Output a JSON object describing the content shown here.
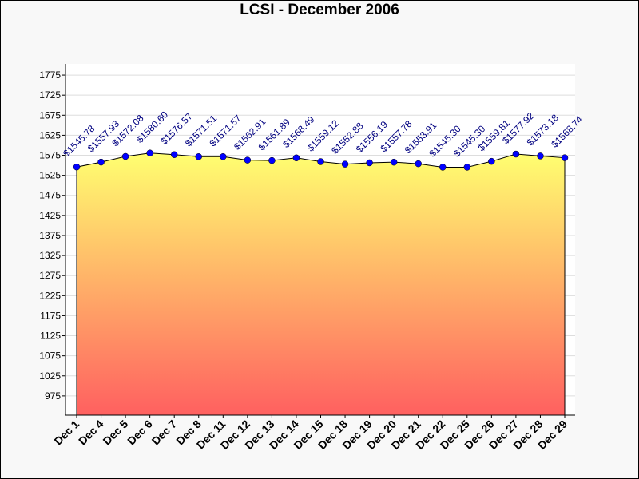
{
  "chart_data": {
    "type": "area",
    "title": "LCSI - December 2006",
    "xlabel": "",
    "ylabel": "",
    "categories": [
      "Dec 1",
      "Dec 4",
      "Dec 5",
      "Dec 6",
      "Dec 7",
      "Dec 8",
      "Dec 11",
      "Dec 12",
      "Dec 13",
      "Dec 14",
      "Dec 15",
      "Dec 18",
      "Dec 19",
      "Dec 20",
      "Dec 21",
      "Dec 22",
      "Dec 25",
      "Dec 26",
      "Dec 27",
      "Dec 28",
      "Dec 29"
    ],
    "values": [
      1545.78,
      1557.93,
      1572.08,
      1580.6,
      1576.57,
      1571.51,
      1571.57,
      1562.91,
      1561.89,
      1568.49,
      1559.12,
      1552.88,
      1556.19,
      1557.78,
      1553.91,
      1545.3,
      1545.3,
      1559.81,
      1577.92,
      1573.18,
      1568.74
    ],
    "labels": [
      "$1545.78",
      "$1557.93",
      "$1572.08",
      "$1580.60",
      "$1576.57",
      "$1571.51",
      "$1571.57",
      "$1562.91",
      "$1561.89",
      "$1568.49",
      "$1559.12",
      "$1552.88",
      "$1556.19",
      "$1557.78",
      "$1553.91",
      "$1545.30",
      "$1545.30",
      "$1559.81",
      "$1577.92",
      "$1573.18",
      "$1568.74"
    ],
    "yticks": [
      "975",
      "1025",
      "1075",
      "1125",
      "1175",
      "1225",
      "1275",
      "1325",
      "1375",
      "1425",
      "1475",
      "1525",
      "1575",
      "1625",
      "1675",
      "1725",
      "1775"
    ],
    "ylim": [
      927,
      1803
    ],
    "grid": true,
    "colors": {
      "fill_top": "#ffff70",
      "fill_bottom": "#ff6060",
      "marker": "#0000ff",
      "label": "#000080"
    }
  }
}
